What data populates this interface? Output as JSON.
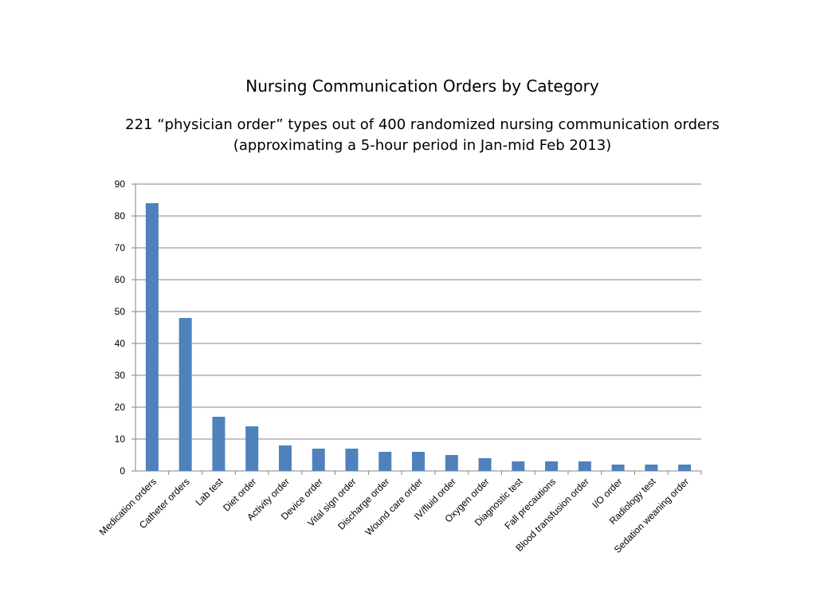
{
  "chart_data": {
    "type": "bar",
    "title": "Nursing Communication Orders by Category",
    "subtitle_lines": [
      "221 “physician order” types out of 400 randomized nursing communication orders",
      "(approximating a 5-hour period in Jan-mid Feb 2013)"
    ],
    "xlabel": "",
    "ylabel": "",
    "ylim": [
      0,
      90
    ],
    "yticks": [
      0,
      10,
      20,
      30,
      40,
      50,
      60,
      70,
      80,
      90
    ],
    "grid": true,
    "legend": "none",
    "bar_color": "#4f81bd",
    "categories": [
      "Medication orders",
      "Catheter orders",
      "Lab test",
      "Diet order",
      "Activity order",
      "Device order",
      "Vital sign order",
      "Discharge order",
      "Wound care order",
      "IV/fluid order",
      "Oxygen order",
      "Diagnostic test",
      "Fall precautions",
      "Blood transfusion order",
      "I/O order",
      "Radiology test",
      "Sedation weaning order"
    ],
    "values": [
      84,
      48,
      17,
      14,
      8,
      7,
      7,
      6,
      6,
      5,
      4,
      3,
      3,
      3,
      2,
      2,
      2
    ]
  }
}
